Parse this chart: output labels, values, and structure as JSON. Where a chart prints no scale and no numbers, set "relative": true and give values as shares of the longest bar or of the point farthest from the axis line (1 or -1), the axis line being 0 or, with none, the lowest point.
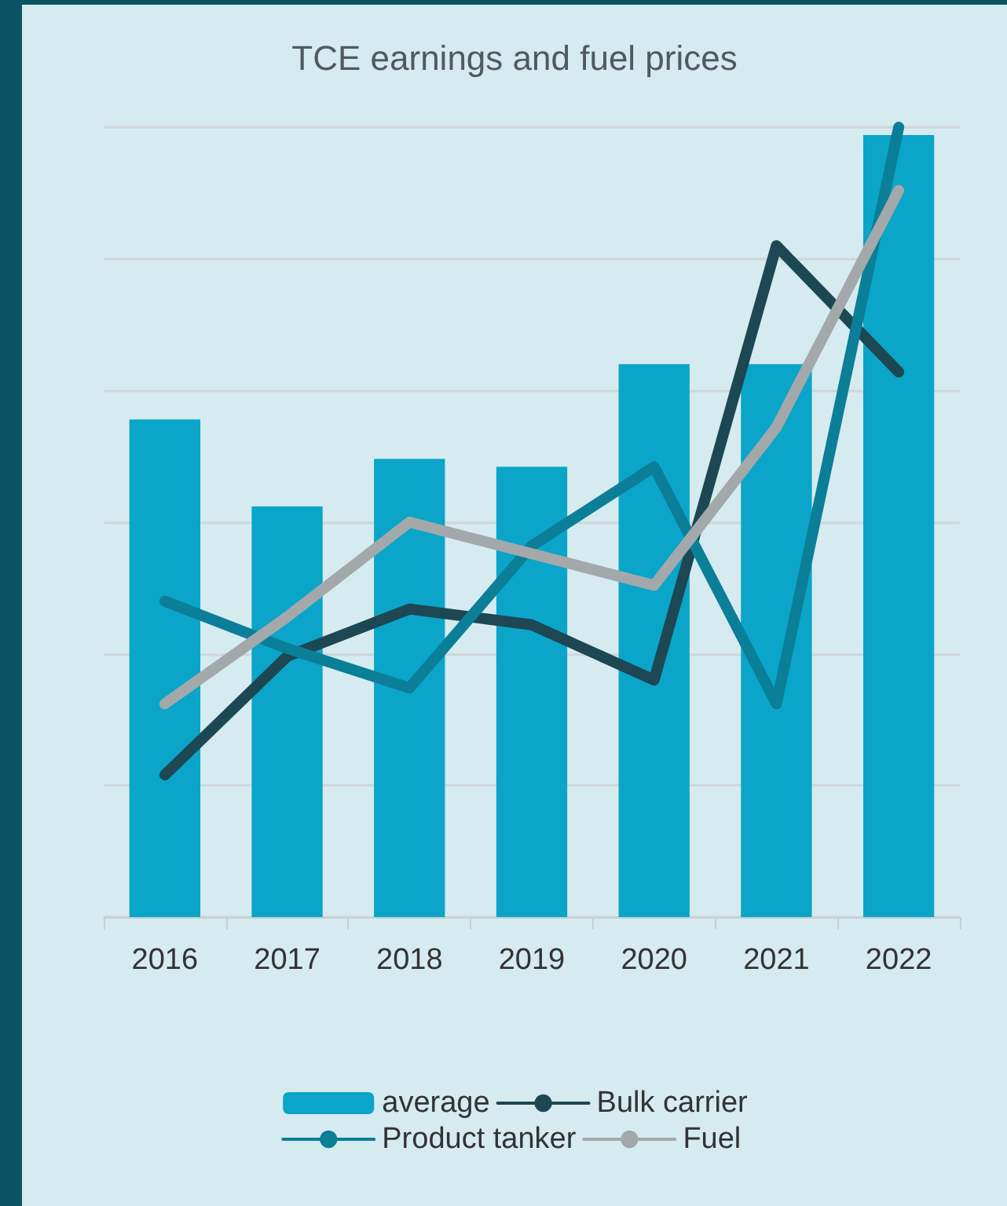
{
  "chart_data": {
    "type": "bar",
    "title": "TCE earnings and fuel prices",
    "categories": [
      "2016",
      "2017",
      "2018",
      "2019",
      "2020",
      "2021",
      "2022"
    ],
    "relative": true,
    "grid": "y",
    "legend": "bottom",
    "marker": "none",
    "line_style": "solid",
    "series": [
      {
        "name": "average",
        "color": "#0aa5c8",
        "values": [
          0.63,
          0.52,
          0.58,
          0.57,
          0.7,
          0.7,
          0.99
        ]
      },
      {
        "name": "Bulk carrier",
        "type": "line",
        "color": "#1c4753",
        "values": [
          0.18,
          0.33,
          0.39,
          0.37,
          0.3,
          0.85,
          0.69
        ]
      },
      {
        "name": "Product tanker",
        "type": "line",
        "color": "#0b7e98",
        "values": [
          0.4,
          0.34,
          0.29,
          0.47,
          0.57,
          0.27,
          1
        ]
      },
      {
        "name": "Fuel",
        "type": "line",
        "color": "#a3a8aa",
        "values": [
          0.27,
          0.38,
          0.5,
          0.46,
          0.42,
          0.62,
          0.92
        ]
      }
    ]
  }
}
